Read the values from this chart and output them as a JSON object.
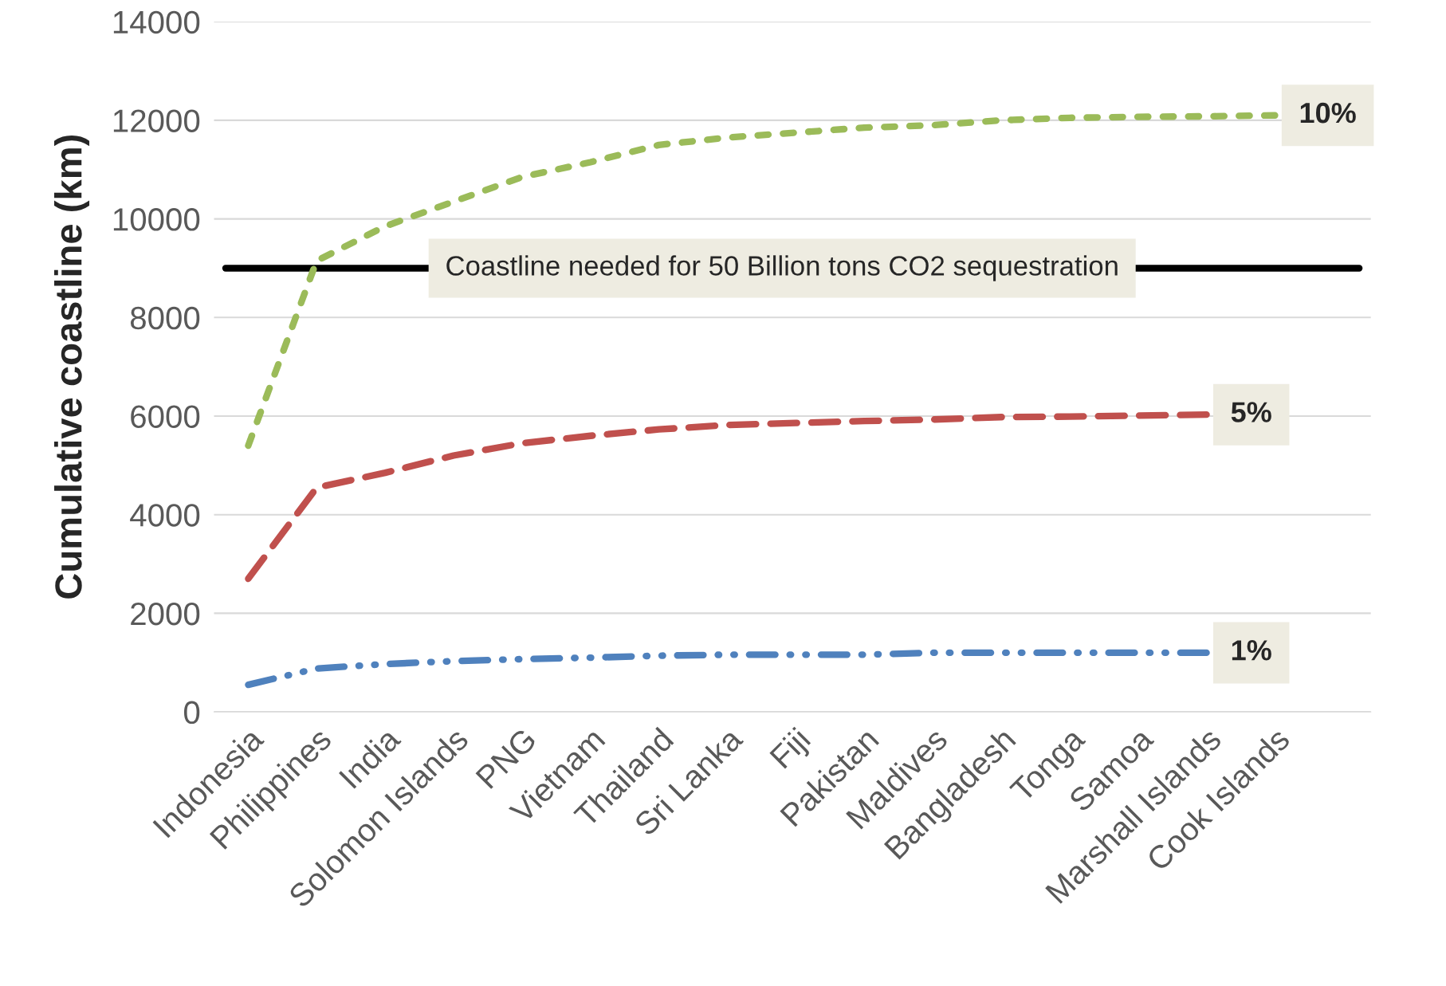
{
  "chart_data": {
    "type": "line",
    "ylabel": "Cumulative coastline (km)",
    "categories": [
      "Indonesia",
      "Philippines",
      "India",
      "Solomon Islands",
      "PNG",
      "Vietnam",
      "Thailand",
      "Sri Lanka",
      "Fiji",
      "Pakistan",
      "Maldives",
      "Bangladesh",
      "Tonga",
      "Samoa",
      "Marshall Islands",
      "Cook Islands"
    ],
    "series": [
      {
        "name": "10%",
        "color": "#9bbb59",
        "line_style": "dotted",
        "values": [
          5400,
          9150,
          9850,
          10350,
          10850,
          11150,
          11500,
          11650,
          11750,
          11850,
          11900,
          12000,
          12050,
          12070,
          12080,
          12100
        ]
      },
      {
        "name": "5%",
        "color": "#c0504d",
        "line_style": "dashed",
        "values": [
          2700,
          4550,
          4850,
          5200,
          5450,
          5600,
          5730,
          5820,
          5860,
          5900,
          5930,
          5980,
          5990,
          6010,
          6030,
          null
        ]
      },
      {
        "name": "1%",
        "color": "#4f81bd",
        "line_style": "dashdot",
        "values": [
          550,
          880,
          970,
          1030,
          1070,
          1100,
          1140,
          1160,
          1160,
          1160,
          1200,
          1200,
          1200,
          1200,
          1200,
          null
        ]
      }
    ],
    "ylim": [
      0,
      14000
    ],
    "yticks": [
      0,
      2000,
      4000,
      6000,
      8000,
      10000,
      12000,
      14000
    ],
    "grid": "y",
    "ref_lines": [
      {
        "axis": "y",
        "value": 9000,
        "label": "Coastline needed for 50 Billion tons CO2 sequestration",
        "color": "#000000"
      }
    ]
  }
}
